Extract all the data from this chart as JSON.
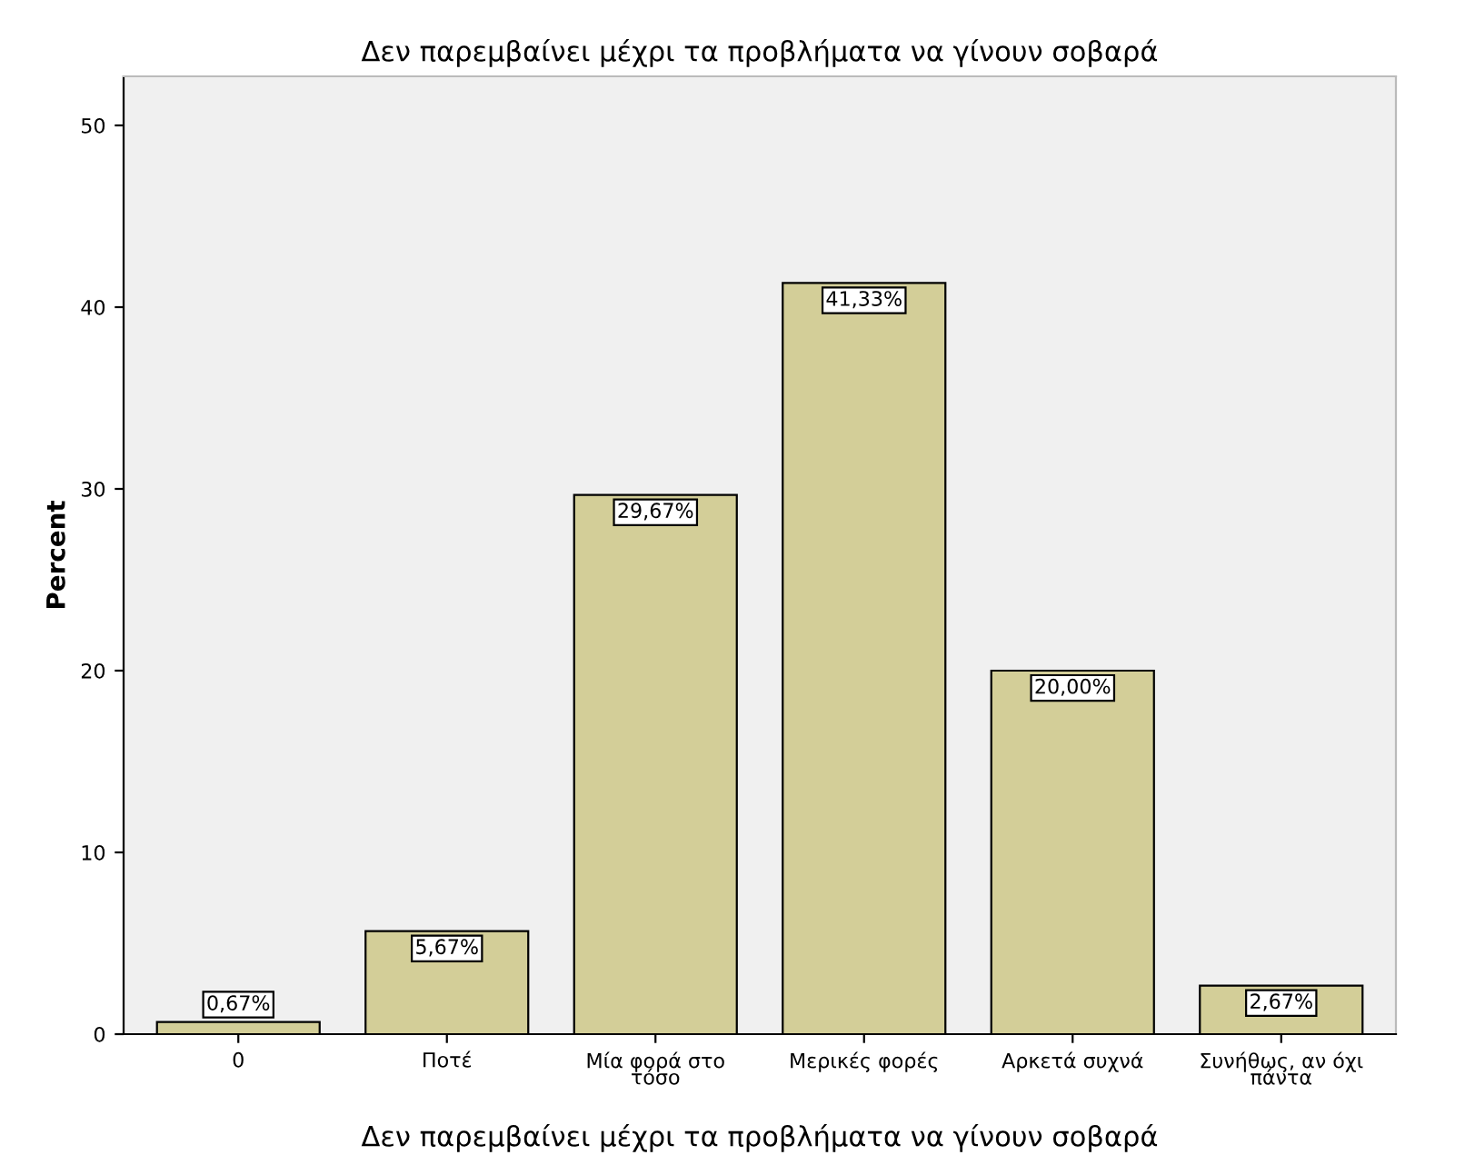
{
  "chart_data": {
    "type": "bar",
    "title": "Δεν παρεμβαίνει μέχρι τα προβλήματα να γίνουν σοβαρά",
    "xlabel": "Δεν παρεμβαίνει μέχρι τα προβλήματα να γίνουν σοβαρά",
    "ylabel": "Percent",
    "categories": [
      "0",
      "Ποτέ",
      "Μία φορά στο τόσο",
      "Μερικές φορές",
      "Αρκετά συχνά",
      "Συνήθως, αν όχι πάντα"
    ],
    "values": [
      0.67,
      5.67,
      29.67,
      41.33,
      20.0,
      2.67
    ],
    "value_labels": [
      "0,67%",
      "5,67%",
      "29,67%",
      "41,33%",
      "20,00%",
      "2,67%"
    ],
    "color": "#d3ce98",
    "ylim": [
      0,
      52.7
    ],
    "yticks": [
      0,
      10,
      20,
      30,
      40,
      50
    ],
    "grid": false
  }
}
